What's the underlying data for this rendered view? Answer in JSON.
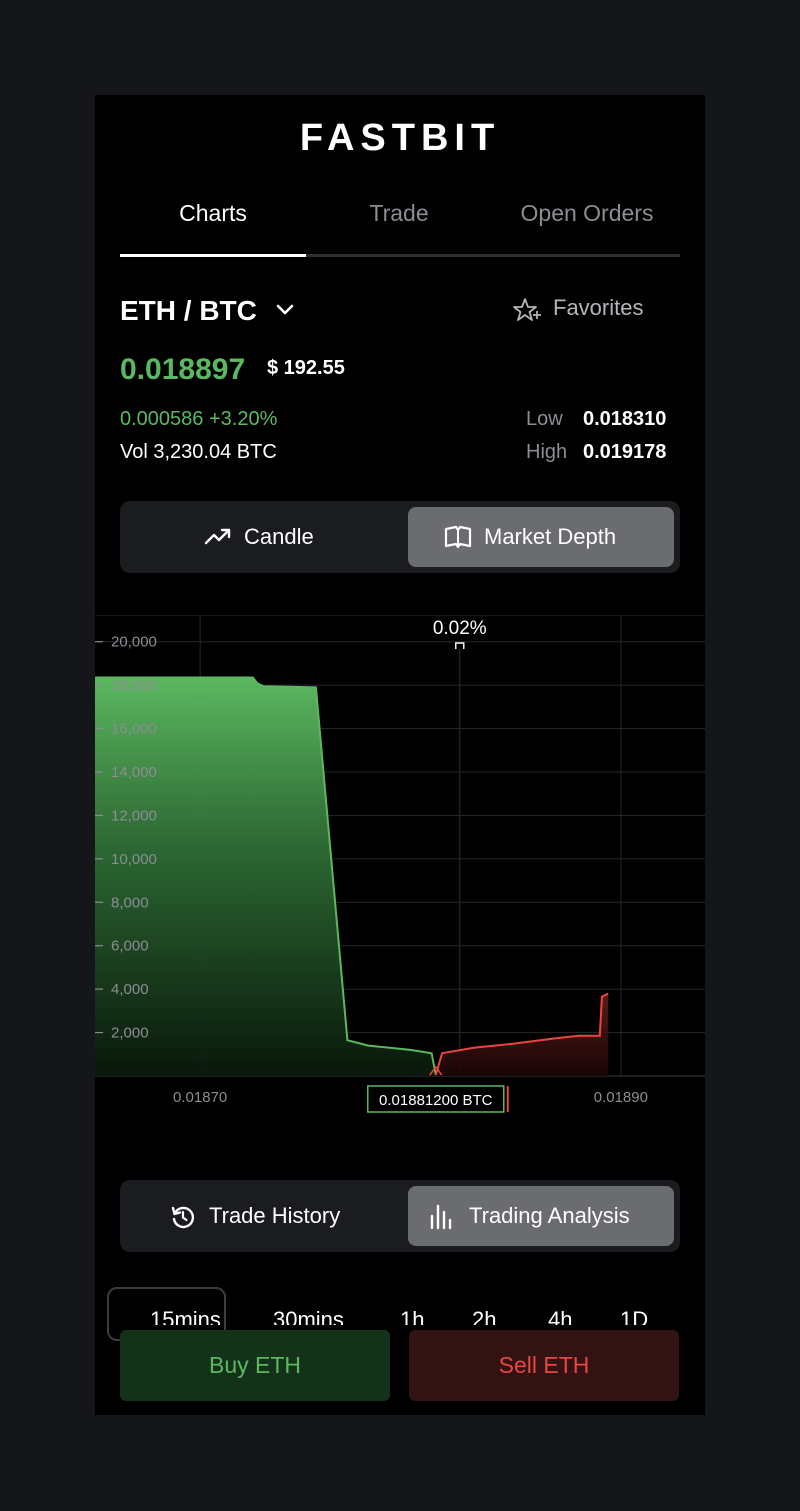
{
  "app": {
    "brand": "FASTBIT"
  },
  "tabs": [
    {
      "label": "Charts",
      "active": true
    },
    {
      "label": "Trade",
      "active": false
    },
    {
      "label": "Open Orders",
      "active": false
    }
  ],
  "market": {
    "pair": "ETH / BTC",
    "favorites_label": "Favorites",
    "price": "0.018897",
    "usd_price": "$ 192.55",
    "change": "0.000586 +3.20%",
    "volume": "Vol 3,230.04 BTC",
    "low_label": "Low",
    "low_value": "0.018310",
    "high_label": "High",
    "high_value": "0.019178"
  },
  "chart_view": {
    "options": [
      {
        "label": "Candle",
        "icon": "trend-up-icon",
        "selected": false
      },
      {
        "label": "Market Depth",
        "icon": "book-icon",
        "selected": true
      }
    ]
  },
  "chart_data": {
    "type": "area",
    "title": "",
    "xlabel": "",
    "ylabel": "",
    "ylim": [
      0,
      21000
    ],
    "xlim": [
      0.01865,
      0.01894
    ],
    "y_ticks": [
      "20,000",
      "18,000",
      "16,000",
      "14,000",
      "12,000",
      "10,000",
      "8,000",
      "6,000",
      "4,000",
      "2,000"
    ],
    "x_ticks": [
      "0.01870",
      "0.01890"
    ],
    "spread_label": "0.02%",
    "mid_price_label": "0.01881200 BTC",
    "series": [
      {
        "side": "bids",
        "color": "#5cb860",
        "x": [
          0.01865,
          0.018725,
          0.018727,
          0.018728,
          0.01873,
          0.018755,
          0.01877,
          0.01878,
          0.0188,
          0.01881,
          0.018812
        ],
        "y": [
          18350,
          18350,
          18100,
          18050,
          17950,
          17900,
          1650,
          1400,
          1200,
          1050,
          50
        ]
      },
      {
        "side": "asks",
        "color": "#e8463f",
        "x": [
          0.018812,
          0.018815,
          0.01883,
          0.01885,
          0.01887,
          0.01888,
          0.01889,
          0.018891,
          0.018894
        ],
        "y": [
          50,
          1050,
          1300,
          1500,
          1750,
          1850,
          1850,
          3650,
          3800
        ]
      }
    ]
  },
  "bottom_view": {
    "options": [
      {
        "label": "Trade History",
        "icon": "history-icon",
        "selected": false
      },
      {
        "label": "Trading Analysis",
        "icon": "bar-chart-icon",
        "selected": true
      }
    ]
  },
  "timeframes": [
    "15mins",
    "30mins",
    "1h",
    "2h",
    "4h",
    "1D"
  ],
  "actions": {
    "buy_label": "Buy ETH",
    "sell_label": "Sell ETH"
  }
}
